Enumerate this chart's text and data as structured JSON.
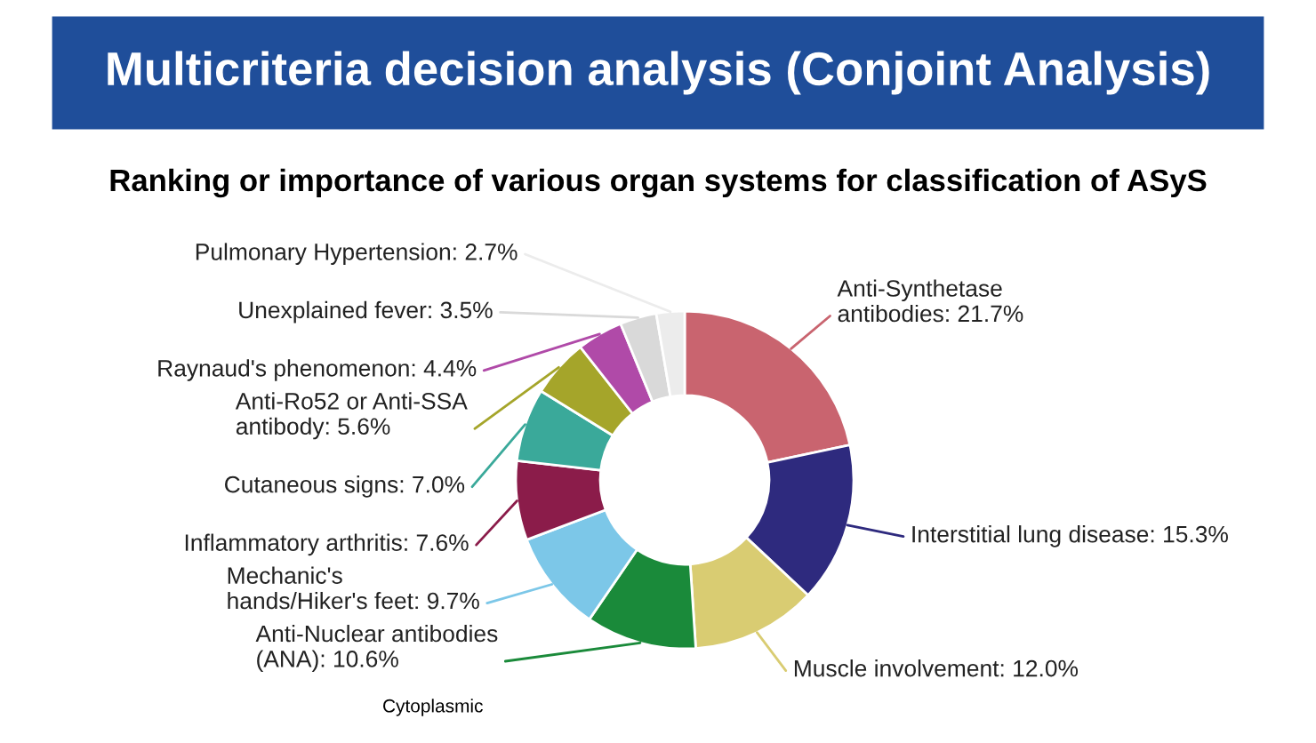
{
  "chart_data": {
    "type": "donut",
    "title": "Multicriteria decision analysis (Conjoint Analysis)",
    "subtitle": "Ranking or importance of various organ systems for classification of ASyS",
    "categories": [
      "Anti-Synthetase\nantibodies",
      "Interstitial lung disease",
      "Muscle involvement",
      "Anti-Nuclear antibodies\n(ANA)",
      "Mechanic's\nhands/Hiker's feet",
      "Inflammatory arthritis",
      "Cutaneous signs",
      "Anti-Ro52 or Anti-SSA\nantibody",
      "Raynaud's phenomenon",
      "Unexplained fever",
      "Pulmonary Hypertension"
    ],
    "values": [
      21.7,
      15.3,
      12.0,
      10.6,
      9.7,
      7.6,
      7.0,
      5.6,
      4.4,
      3.5,
      2.7
    ],
    "colors": [
      "#c9646f",
      "#2e2a7e",
      "#d9cc72",
      "#1a8a3a",
      "#7cc7e8",
      "#8b1c4a",
      "#3aa99a",
      "#a5a52a",
      "#b04aa8",
      "#d9d9d9",
      "#ececec"
    ],
    "value_labels": [
      "21.7%",
      "15.3%",
      "12.0%",
      "10.6%",
      "9.7%",
      "7.6%",
      "7.0%",
      "5.6%",
      "4.4%",
      "3.5%",
      "2.7%"
    ],
    "annotations": [
      "Cytoplasmic"
    ]
  }
}
